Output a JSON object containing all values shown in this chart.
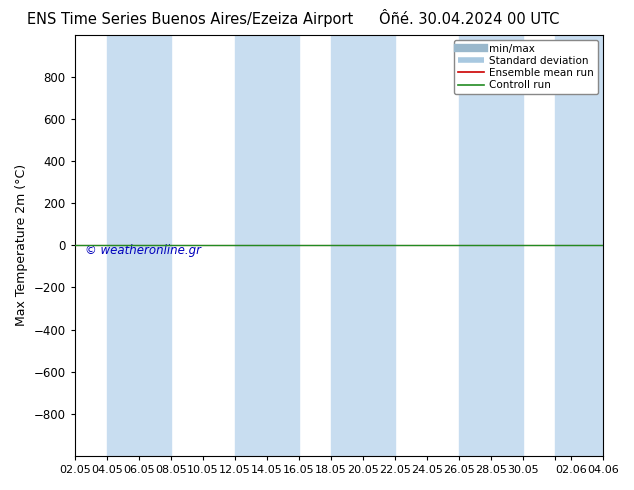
{
  "title_left": "ENS Time Series Buenos Aires/Ezeiza Airport",
  "title_right": "Ôñé. 30.04.2024 00 UTC",
  "ylabel": "Max Temperature 2m (°C)",
  "ylim_top": -1000,
  "ylim_bottom": 1000,
  "yticks": [
    -800,
    -600,
    -400,
    -200,
    0,
    200,
    400,
    600,
    800
  ],
  "xtick_labels": [
    "02.05",
    "04.05",
    "06.05",
    "08.05",
    "10.05",
    "12.05",
    "14.05",
    "16.05",
    "18.05",
    "20.05",
    "22.05",
    "24.05",
    "26.05",
    "28.05",
    "30.05",
    "",
    "02.06",
    "04.06"
  ],
  "xtick_positions": [
    0,
    2,
    4,
    6,
    8,
    10,
    12,
    14,
    16,
    18,
    20,
    22,
    24,
    26,
    28,
    30,
    31,
    33
  ],
  "xlim_start": 0,
  "xlim_end": 33,
  "blue_bands": [
    [
      2,
      4
    ],
    [
      4,
      6
    ],
    [
      10,
      12
    ],
    [
      12,
      14
    ],
    [
      16,
      18
    ],
    [
      18,
      20
    ],
    [
      24,
      26
    ],
    [
      26,
      28
    ],
    [
      30,
      33
    ],
    [
      31,
      33
    ]
  ],
  "blue_band_color": "#c8ddf0",
  "green_line_y": 0,
  "green_line_color": "#228b22",
  "red_line_color": "#cc0000",
  "watermark": "© weatheronline.gr",
  "watermark_color": "#0000bb",
  "bg_color": "#ffffff",
  "legend_labels": [
    "min/max",
    "Standard deviation",
    "Ensemble mean run",
    "Controll run"
  ],
  "legend_line_colors": [
    "#a0b8d0",
    "#a0b8d0",
    "#cc0000",
    "#228b22"
  ],
  "title_fontsize": 10.5,
  "axis_fontsize": 9,
  "tick_fontsize": 8.5
}
